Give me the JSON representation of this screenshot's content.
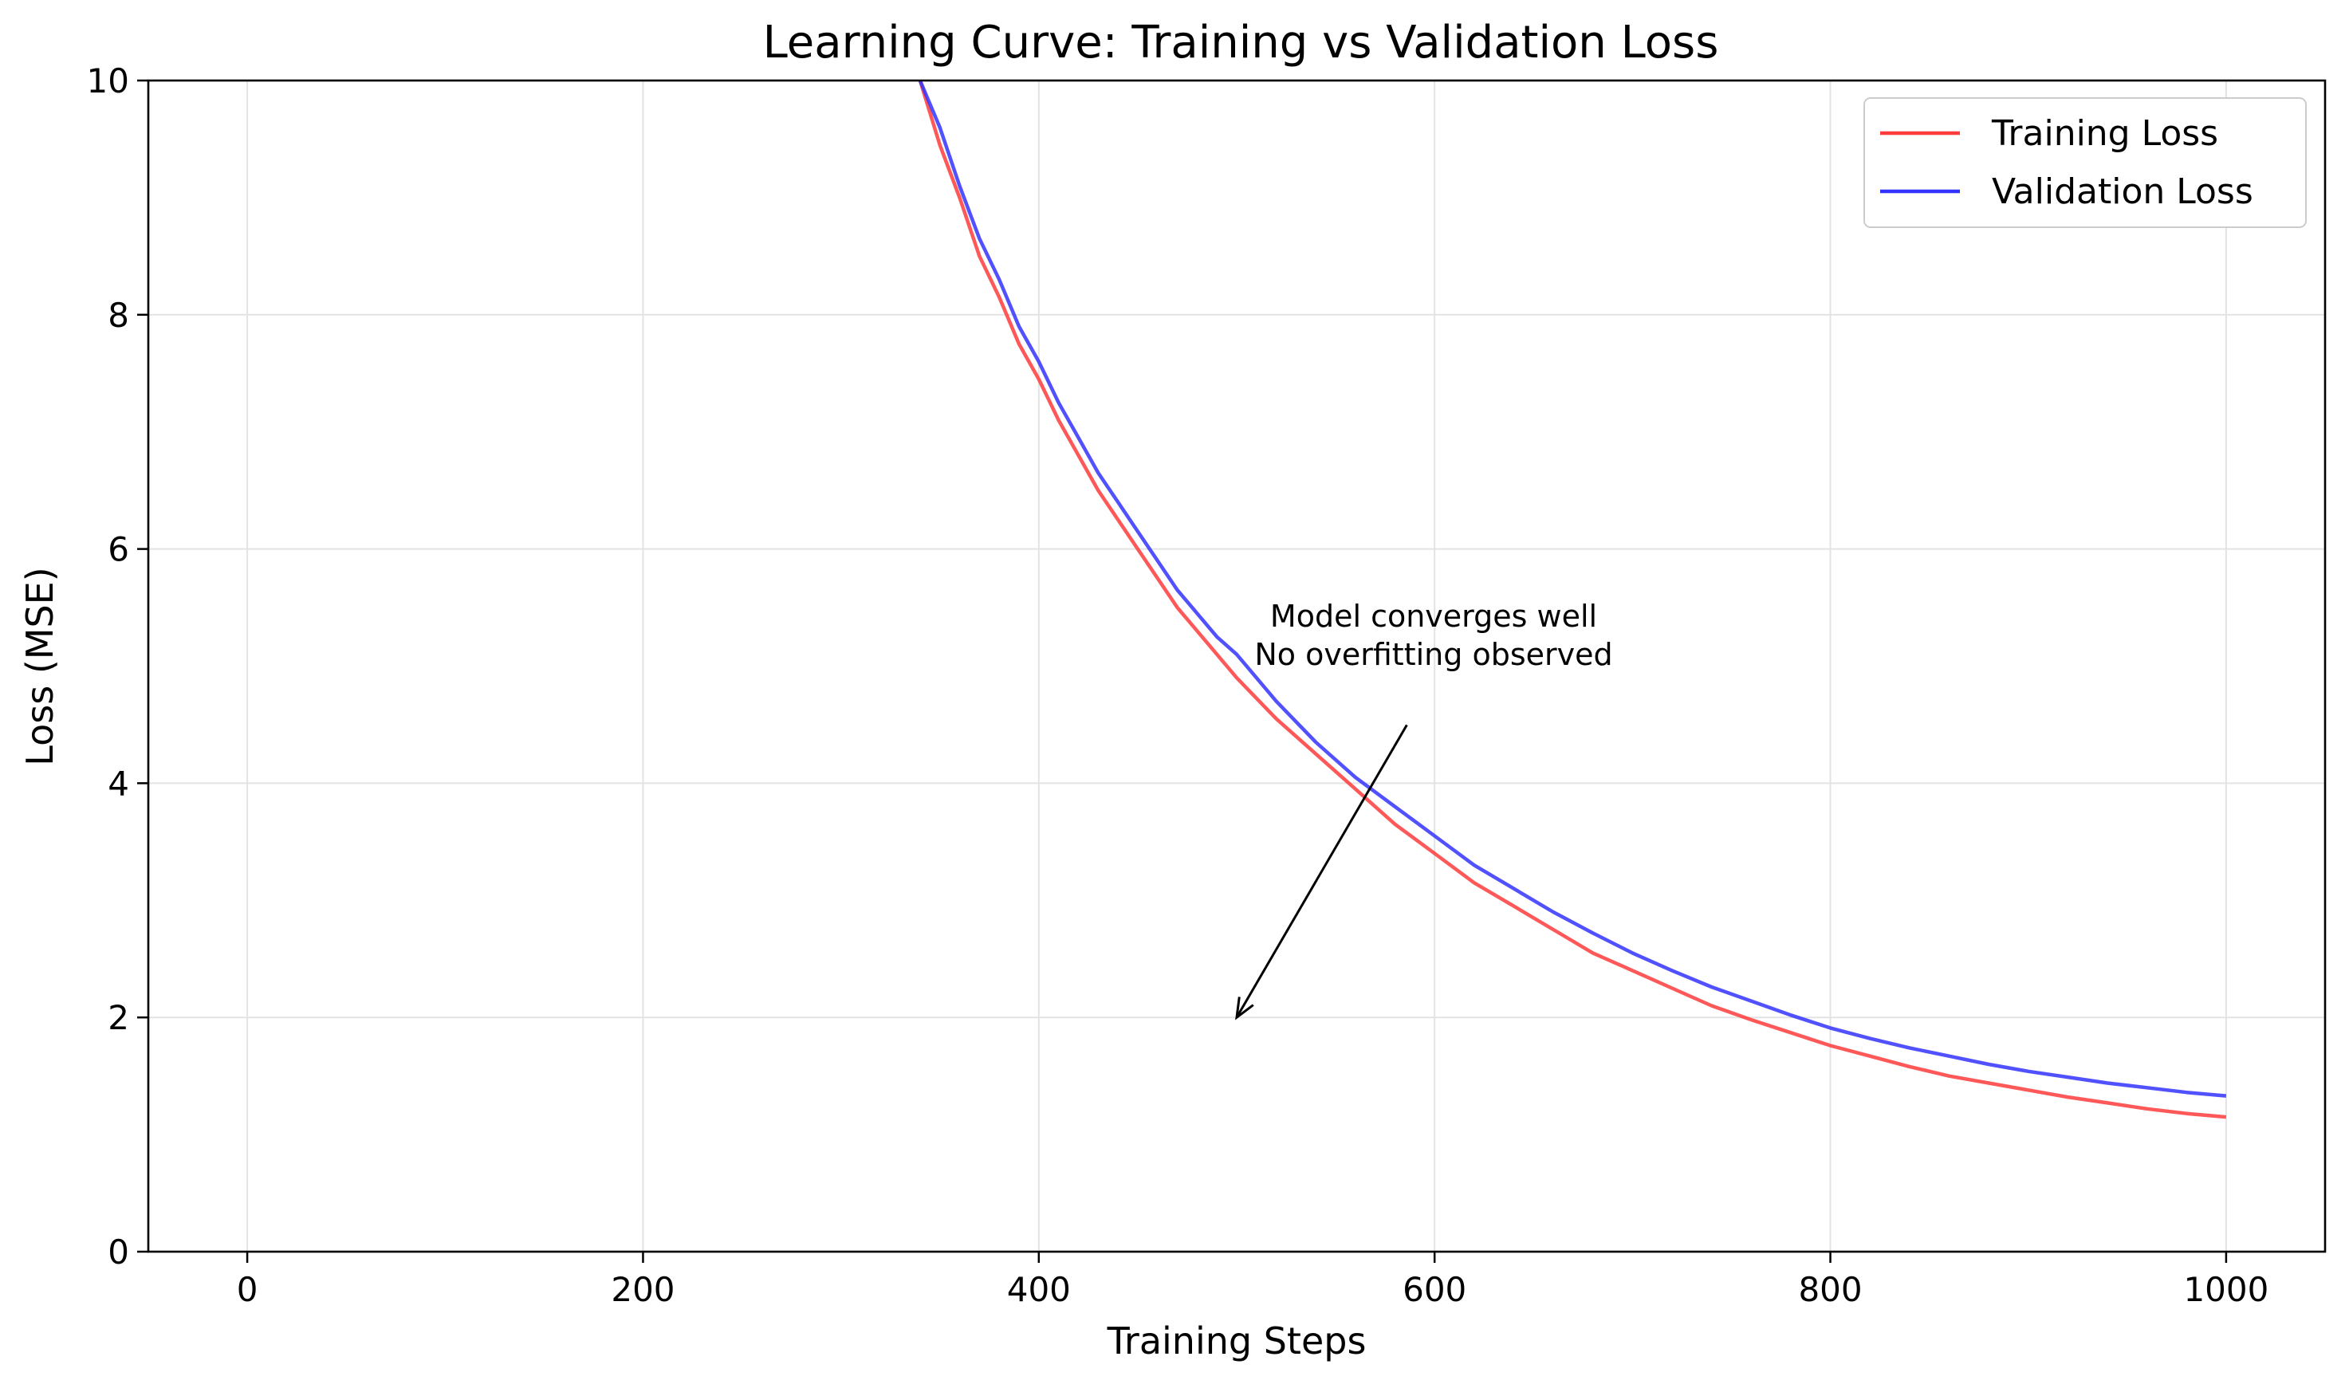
{
  "chart_data": {
    "type": "line",
    "title": "Learning Curve: Training vs Validation Loss",
    "xlabel": "Training Steps",
    "ylabel": "Loss (MSE)",
    "xlim": [
      -50,
      1050
    ],
    "ylim": [
      0,
      10
    ],
    "xticks": [
      "0",
      "200",
      "400",
      "600",
      "800",
      "1000"
    ],
    "yticks": [
      "0",
      "2",
      "4",
      "6",
      "8",
      "10"
    ],
    "grid": true,
    "legend_position": "top-right",
    "series": [
      {
        "name": "Training Loss",
        "color": "#ff3b3b",
        "x": [
          340,
          350,
          360,
          370,
          380,
          390,
          400,
          410,
          420,
          430,
          440,
          450,
          460,
          470,
          480,
          490,
          500,
          520,
          540,
          560,
          580,
          600,
          620,
          640,
          660,
          680,
          700,
          720,
          740,
          760,
          780,
          800,
          820,
          840,
          860,
          880,
          900,
          920,
          940,
          960,
          980,
          1000
        ],
        "y": [
          10.0,
          9.45,
          9.0,
          8.5,
          8.15,
          7.75,
          7.45,
          7.1,
          6.8,
          6.5,
          6.25,
          6.0,
          5.75,
          5.5,
          5.3,
          5.1,
          4.9,
          4.55,
          4.25,
          3.95,
          3.65,
          3.4,
          3.15,
          2.95,
          2.75,
          2.55,
          2.4,
          2.25,
          2.1,
          1.98,
          1.87,
          1.76,
          1.67,
          1.58,
          1.5,
          1.44,
          1.38,
          1.32,
          1.27,
          1.22,
          1.18,
          1.15
        ]
      },
      {
        "name": "Validation Loss",
        "color": "#3333ff",
        "x": [
          340,
          350,
          360,
          370,
          380,
          390,
          400,
          410,
          420,
          430,
          440,
          450,
          460,
          470,
          480,
          490,
          500,
          520,
          540,
          560,
          580,
          600,
          620,
          640,
          660,
          680,
          700,
          720,
          740,
          760,
          780,
          800,
          820,
          840,
          860,
          880,
          900,
          920,
          940,
          960,
          980,
          1000
        ],
        "y": [
          10.0,
          9.6,
          9.1,
          8.65,
          8.3,
          7.9,
          7.6,
          7.25,
          6.95,
          6.65,
          6.4,
          6.15,
          5.9,
          5.65,
          5.45,
          5.25,
          5.1,
          4.7,
          4.35,
          4.05,
          3.8,
          3.55,
          3.3,
          3.1,
          2.9,
          2.72,
          2.55,
          2.4,
          2.26,
          2.14,
          2.02,
          1.91,
          1.82,
          1.74,
          1.67,
          1.6,
          1.54,
          1.49,
          1.44,
          1.4,
          1.36,
          1.33
        ]
      }
    ],
    "annotation": {
      "lines": [
        "Model converges well",
        "No overfitting observed"
      ],
      "text_at": [
        590,
        5.3
      ],
      "arrow_to": [
        500,
        2.0
      ]
    }
  }
}
